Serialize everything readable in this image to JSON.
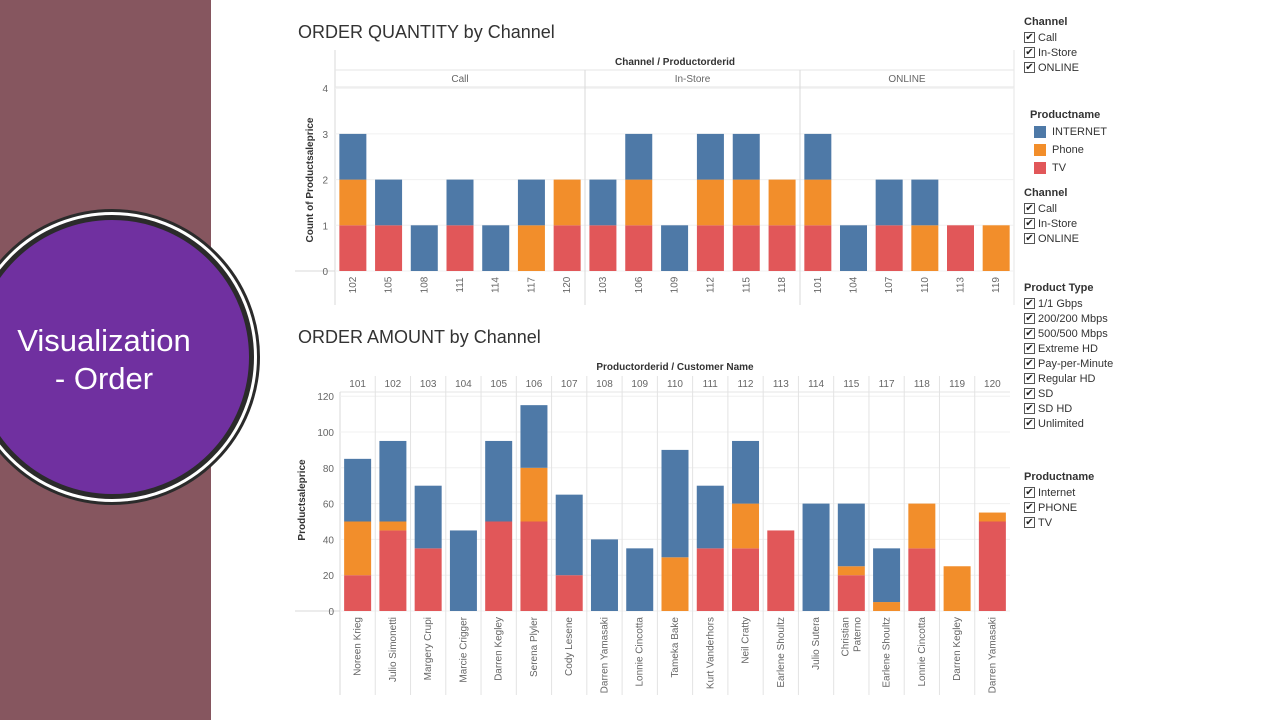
{
  "slide": {
    "title_line1": "Visualization",
    "title_line2": "- Order"
  },
  "colors": {
    "internet": "#4e79a7",
    "phone": "#f28e2b",
    "tv": "#e15759",
    "sidebar": "#86565f",
    "circle": "#7030a0"
  },
  "legends": {
    "channel1": {
      "title": "Channel",
      "items": [
        "Call",
        "In-Store",
        "ONLINE"
      ]
    },
    "productname_color": {
      "title": "Productname",
      "items": [
        "INTERNET",
        "Phone",
        "TV"
      ]
    },
    "channel2": {
      "title": "Channel",
      "items": [
        "Call",
        "In-Store",
        "ONLINE"
      ]
    },
    "product_type": {
      "title": "Product Type",
      "items": [
        "1/1 Gbps",
        "200/200 Mbps",
        "500/500 Mbps",
        "Extreme HD",
        "Pay-per-Minute",
        "Regular HD",
        "SD",
        "SD HD",
        "Unlimited"
      ]
    },
    "productname_filter": {
      "title": "Productname",
      "items": [
        "Internet",
        "PHONE",
        "TV"
      ]
    }
  },
  "chart_data": [
    {
      "type": "bar",
      "title": "ORDER QUANTITY by Channel",
      "header": "Channel / Productorderid",
      "ylabel": "Count of Productsaleprice",
      "ylim": [
        0,
        4
      ],
      "yticks": [
        0,
        1,
        2,
        3,
        4
      ],
      "stacked": true,
      "groups": [
        {
          "name": "Call",
          "categories": [
            "102",
            "105",
            "108",
            "111",
            "114",
            "117",
            "120"
          ]
        },
        {
          "name": "In-Store",
          "categories": [
            "103",
            "106",
            "109",
            "112",
            "115",
            "118"
          ]
        },
        {
          "name": "ONLINE",
          "categories": [
            "101",
            "104",
            "107",
            "110",
            "113",
            "119"
          ]
        }
      ],
      "series": [
        {
          "name": "TV",
          "values": [
            1,
            1,
            0,
            1,
            0,
            0,
            1,
            1,
            1,
            0,
            1,
            1,
            1,
            1,
            0,
            1,
            0,
            1,
            0
          ]
        },
        {
          "name": "Phone",
          "values": [
            1,
            0,
            0,
            0,
            0,
            1,
            1,
            0,
            1,
            0,
            1,
            1,
            1,
            1,
            0,
            0,
            1,
            0,
            1
          ]
        },
        {
          "name": "INTERNET",
          "values": [
            1,
            1,
            1,
            1,
            1,
            1,
            0,
            1,
            1,
            1,
            1,
            1,
            0,
            1,
            1,
            1,
            1,
            0,
            0
          ]
        }
      ]
    },
    {
      "type": "bar",
      "title": "ORDER AMOUNT by Channel",
      "header": "Productorderid / Customer Name",
      "ylabel": "Productsaleprice",
      "ylim": [
        0,
        125
      ],
      "yticks": [
        0,
        20,
        40,
        60,
        80,
        100,
        120
      ],
      "stacked": true,
      "categories": [
        "101",
        "102",
        "103",
        "104",
        "105",
        "106",
        "107",
        "108",
        "109",
        "110",
        "111",
        "112",
        "113",
        "114",
        "115",
        "117",
        "118",
        "119",
        "120"
      ],
      "customers": [
        "Noreen Krieg",
        "Julio Simonetti",
        "Margery Crupi",
        "Marcie Crigger",
        "Darren Kegley",
        "Serena Plyler",
        "Cody Lesene",
        "Darren Yamasaki",
        "Lonnie Cincotta",
        "Tameka Bake",
        "Kurt Vanderhors",
        "Neil Cratty",
        "Earlene Shoultz",
        "Julio Sutera",
        "Christian Paterno",
        "Earlene Shoultz",
        "Lonnie Cincotta",
        "Darren Kegley",
        "Darren Yamasaki"
      ],
      "series": [
        {
          "name": "TV",
          "values": [
            20,
            45,
            35,
            0,
            50,
            50,
            20,
            0,
            0,
            0,
            35,
            35,
            45,
            0,
            20,
            0,
            35,
            0,
            50
          ]
        },
        {
          "name": "Phone",
          "values": [
            30,
            5,
            0,
            0,
            0,
            30,
            0,
            0,
            0,
            30,
            0,
            25,
            0,
            0,
            5,
            5,
            25,
            25,
            5
          ]
        },
        {
          "name": "INTERNET",
          "values": [
            35,
            45,
            35,
            45,
            45,
            35,
            45,
            40,
            35,
            60,
            35,
            35,
            0,
            60,
            35,
            30,
            0,
            0,
            0
          ]
        }
      ]
    }
  ]
}
